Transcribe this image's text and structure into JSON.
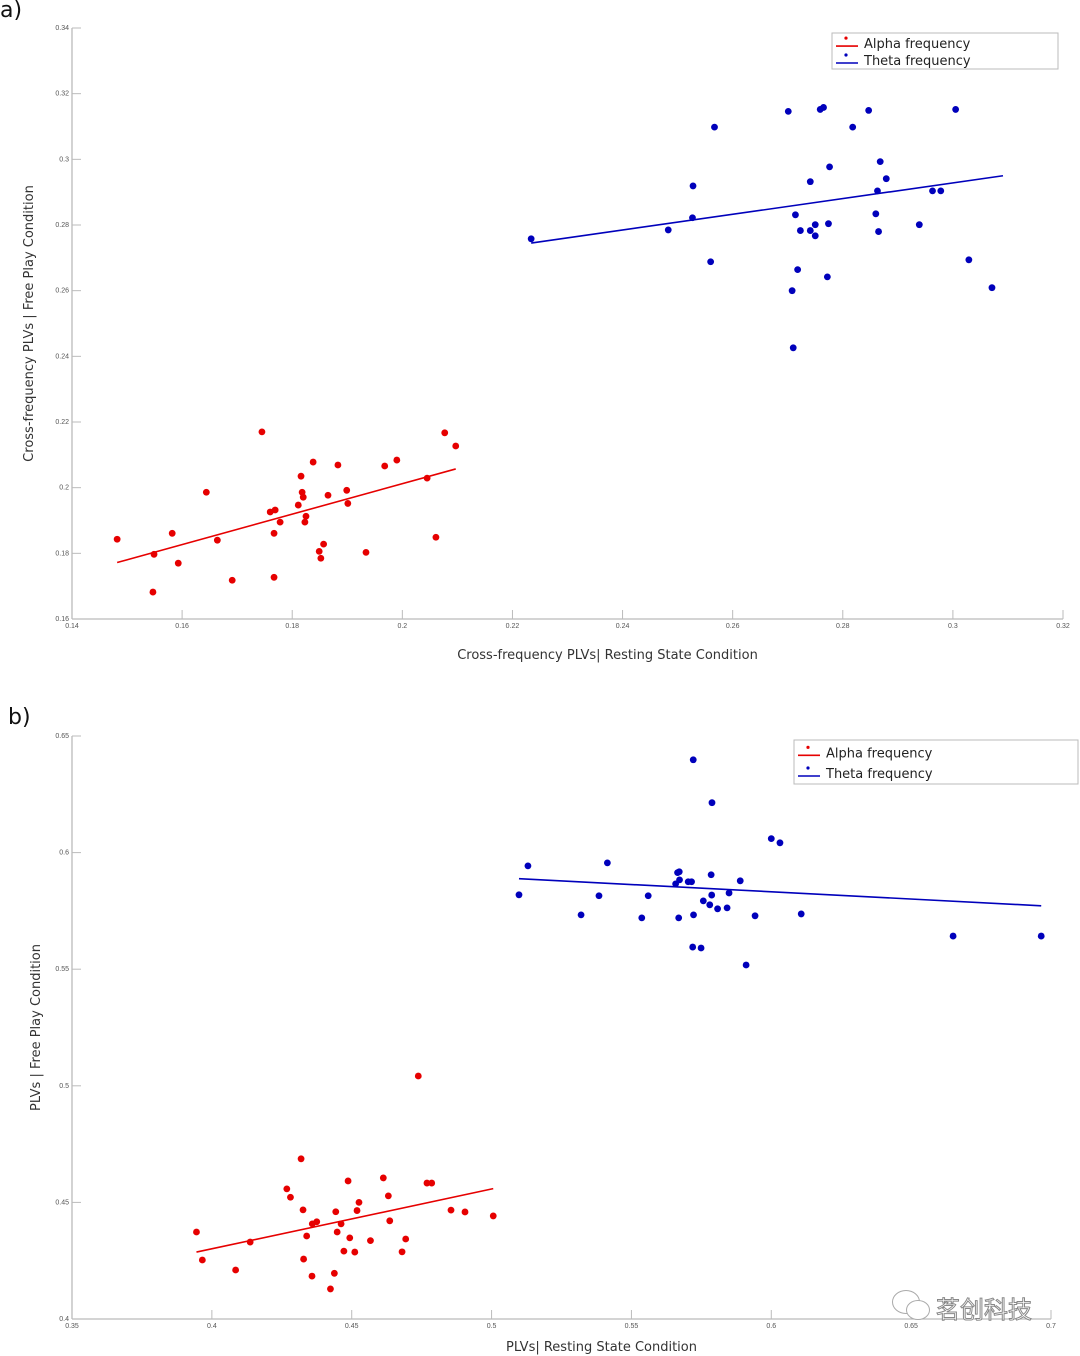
{
  "colors": {
    "alpha": "#e60000",
    "theta": "#0000bb",
    "axis": "#bbbbbb"
  },
  "watermark": "茗创科技",
  "chart_data": [
    {
      "panel": "a)",
      "type": "scatter",
      "xlabel": "Cross-frequency PLVs| Resting State Condition",
      "ylabel": "Cross-frequency PLVs | Free Play Condition",
      "xlim": [
        0.14,
        0.32
      ],
      "ylim": [
        0.16,
        0.34
      ],
      "xticks": [
        0.14,
        0.16,
        0.18,
        0.2,
        0.22,
        0.24,
        0.26,
        0.28,
        0.3,
        0.32
      ],
      "xtick_labels": [
        "0.14",
        "0.16",
        "0.18",
        "0.2",
        "0.22",
        "0.24",
        "0.26",
        "0.28",
        "0.3",
        "0.32"
      ],
      "yticks": [
        0.16,
        0.18,
        0.2,
        0.22,
        0.24,
        0.26,
        0.28,
        0.3,
        0.32,
        0.34
      ],
      "ytick_labels": [
        "0.16",
        "0.18",
        "0.2",
        "0.22",
        "0.24",
        "0.26",
        "0.28",
        "0.3",
        "0.32",
        "0.34"
      ],
      "legend": "top-right",
      "grid": false,
      "series": [
        {
          "name": "Alpha frequency",
          "color": "#e60000",
          "points": [
            [
              0.1482,
              0.1843
            ],
            [
              0.1547,
              0.1682
            ],
            [
              0.1549,
              0.1797
            ],
            [
              0.1582,
              0.1861
            ],
            [
              0.1593,
              0.177
            ],
            [
              0.1644,
              0.1986
            ],
            [
              0.1664,
              0.184
            ],
            [
              0.1691,
              0.1718
            ],
            [
              0.1745,
              0.217
            ],
            [
              0.176,
              0.1926
            ],
            [
              0.1767,
              0.1861
            ],
            [
              0.1769,
              0.1932
            ],
            [
              0.1767,
              0.1727
            ],
            [
              0.1778,
              0.1895
            ],
            [
              0.1811,
              0.1947
            ],
            [
              0.1816,
              0.2035
            ],
            [
              0.1818,
              0.1986
            ],
            [
              0.182,
              0.1971
            ],
            [
              0.1825,
              0.1913
            ],
            [
              0.1823,
              0.1895
            ],
            [
              0.1838,
              0.2078
            ],
            [
              0.1849,
              0.1806
            ],
            [
              0.1852,
              0.1785
            ],
            [
              0.1857,
              0.1828
            ],
            [
              0.1865,
              0.1977
            ],
            [
              0.1883,
              0.2069
            ],
            [
              0.1899,
              0.1992
            ],
            [
              0.1901,
              0.1952
            ],
            [
              0.1934,
              0.1803
            ],
            [
              0.1968,
              0.2066
            ],
            [
              0.199,
              0.2084
            ],
            [
              0.2045,
              0.2029
            ],
            [
              0.2061,
              0.1849
            ],
            [
              0.2077,
              0.2167
            ],
            [
              0.2097,
              0.2127
            ]
          ],
          "fit_line": [
            [
              0.1482,
              0.1772
            ],
            [
              0.2097,
              0.2057
            ]
          ]
        },
        {
          "name": "Theta frequency",
          "color": "#0000bb",
          "points": [
            [
              0.2234,
              0.2758
            ],
            [
              0.2483,
              0.2785
            ],
            [
              0.2528,
              0.2919
            ],
            [
              0.2527,
              0.2822
            ],
            [
              0.256,
              0.2688
            ],
            [
              0.2567,
              0.3098
            ],
            [
              0.2701,
              0.3146
            ],
            [
              0.2708,
              0.26
            ],
            [
              0.271,
              0.2426
            ],
            [
              0.2714,
              0.2831
            ],
            [
              0.2718,
              0.2664
            ],
            [
              0.2723,
              0.2783
            ],
            [
              0.2741,
              0.2932
            ],
            [
              0.2741,
              0.2783
            ],
            [
              0.275,
              0.2767
            ],
            [
              0.275,
              0.2801
            ],
            [
              0.2759,
              0.3152
            ],
            [
              0.2765,
              0.3158
            ],
            [
              0.2772,
              0.2642
            ],
            [
              0.2774,
              0.2804
            ],
            [
              0.2776,
              0.2977
            ],
            [
              0.2818,
              0.3098
            ],
            [
              0.2847,
              0.3149
            ],
            [
              0.286,
              0.2834
            ],
            [
              0.2863,
              0.2904
            ],
            [
              0.2865,
              0.278
            ],
            [
              0.2868,
              0.2993
            ],
            [
              0.2879,
              0.2941
            ],
            [
              0.2939,
              0.2801
            ],
            [
              0.2963,
              0.2904
            ],
            [
              0.2978,
              0.2904
            ],
            [
              0.3005,
              0.3152
            ],
            [
              0.3029,
              0.2694
            ],
            [
              0.3071,
              0.2609
            ]
          ],
          "fit_line": [
            [
              0.2234,
              0.2745
            ],
            [
              0.3091,
              0.295
            ]
          ]
        }
      ]
    },
    {
      "panel": "b)",
      "type": "scatter",
      "xlabel": "PLVs| Resting State Condition",
      "ylabel": "PLVs | Free Play Condition",
      "xlim": [
        0.35,
        0.7
      ],
      "ylim": [
        0.4,
        0.65
      ],
      "xticks": [
        0.35,
        0.4,
        0.45,
        0.5,
        0.55,
        0.6,
        0.65,
        0.7
      ],
      "xtick_labels": [
        "0.35",
        "0.4",
        "0.45",
        "0.5",
        "0.55",
        "0.6",
        "0.65",
        "0.7"
      ],
      "yticks": [
        0.4,
        0.45,
        0.5,
        0.55,
        0.6,
        0.65
      ],
      "ytick_labels": [
        "0.4",
        "0.45",
        "0.5",
        "0.55",
        "0.6",
        "0.65"
      ],
      "legend": "top-right",
      "grid": false,
      "series": [
        {
          "name": "Alpha frequency",
          "color": "#e60000",
          "points": [
            [
              0.3945,
              0.4373
            ],
            [
              0.3966,
              0.4253
            ],
            [
              0.4085,
              0.421
            ],
            [
              0.4137,
              0.433
            ],
            [
              0.4268,
              0.4558
            ],
            [
              0.4281,
              0.4522
            ],
            [
              0.4319,
              0.4687
            ],
            [
              0.4326,
              0.4468
            ],
            [
              0.4328,
              0.4257
            ],
            [
              0.4339,
              0.4356
            ],
            [
              0.4358,
              0.4184
            ],
            [
              0.4359,
              0.4408
            ],
            [
              0.4375,
              0.4417
            ],
            [
              0.4424,
              0.4129
            ],
            [
              0.4438,
              0.4196
            ],
            [
              0.4443,
              0.446
            ],
            [
              0.4448,
              0.4373
            ],
            [
              0.4462,
              0.4408
            ],
            [
              0.4472,
              0.4291
            ],
            [
              0.4487,
              0.4592
            ],
            [
              0.4493,
              0.4348
            ],
            [
              0.4511,
              0.4287
            ],
            [
              0.4519,
              0.4465
            ],
            [
              0.4526,
              0.45
            ],
            [
              0.4567,
              0.4336
            ],
            [
              0.4613,
              0.4605
            ],
            [
              0.4631,
              0.4528
            ],
            [
              0.4636,
              0.4421
            ],
            [
              0.468,
              0.4288
            ],
            [
              0.4693,
              0.4343
            ],
            [
              0.4738,
              0.5042
            ],
            [
              0.4769,
              0.4583
            ],
            [
              0.4786,
              0.4583
            ],
            [
              0.4855,
              0.4467
            ],
            [
              0.4905,
              0.4459
            ],
            [
              0.5006,
              0.4442
            ]
          ],
          "fit_line": [
            [
              0.3945,
              0.4287
            ],
            [
              0.5006,
              0.4559
            ]
          ]
        },
        {
          "name": "Theta frequency",
          "color": "#0000bb",
          "points": [
            [
              0.5098,
              0.5819
            ],
            [
              0.513,
              0.5943
            ],
            [
              0.532,
              0.5733
            ],
            [
              0.5384,
              0.5815
            ],
            [
              0.5414,
              0.5956
            ],
            [
              0.5537,
              0.572
            ],
            [
              0.556,
              0.5815
            ],
            [
              0.5658,
              0.5866
            ],
            [
              0.5665,
              0.5914
            ],
            [
              0.5671,
              0.5918
            ],
            [
              0.5669,
              0.572
            ],
            [
              0.5672,
              0.5883
            ],
            [
              0.5703,
              0.5875
            ],
            [
              0.5715,
              0.5875
            ],
            [
              0.5719,
              0.5595
            ],
            [
              0.5721,
              0.6398
            ],
            [
              0.5722,
              0.5733
            ],
            [
              0.5749,
              0.5591
            ],
            [
              0.5757,
              0.5793
            ],
            [
              0.578,
              0.5776
            ],
            [
              0.5785,
              0.5905
            ],
            [
              0.5787,
              0.5818
            ],
            [
              0.5788,
              0.6214
            ],
            [
              0.5808,
              0.5759
            ],
            [
              0.5842,
              0.5763
            ],
            [
              0.5849,
              0.5827
            ],
            [
              0.5889,
              0.5879
            ],
            [
              0.591,
              0.5518
            ],
            [
              0.5942,
              0.5729
            ],
            [
              0.6,
              0.606
            ],
            [
              0.6031,
              0.6042
            ],
            [
              0.6107,
              0.5737
            ],
            [
              0.665,
              0.5642
            ],
            [
              0.6965,
              0.5642
            ]
          ],
          "fit_line": [
            [
              0.5098,
              0.5888
            ],
            [
              0.6965,
              0.5772
            ]
          ]
        }
      ]
    }
  ]
}
